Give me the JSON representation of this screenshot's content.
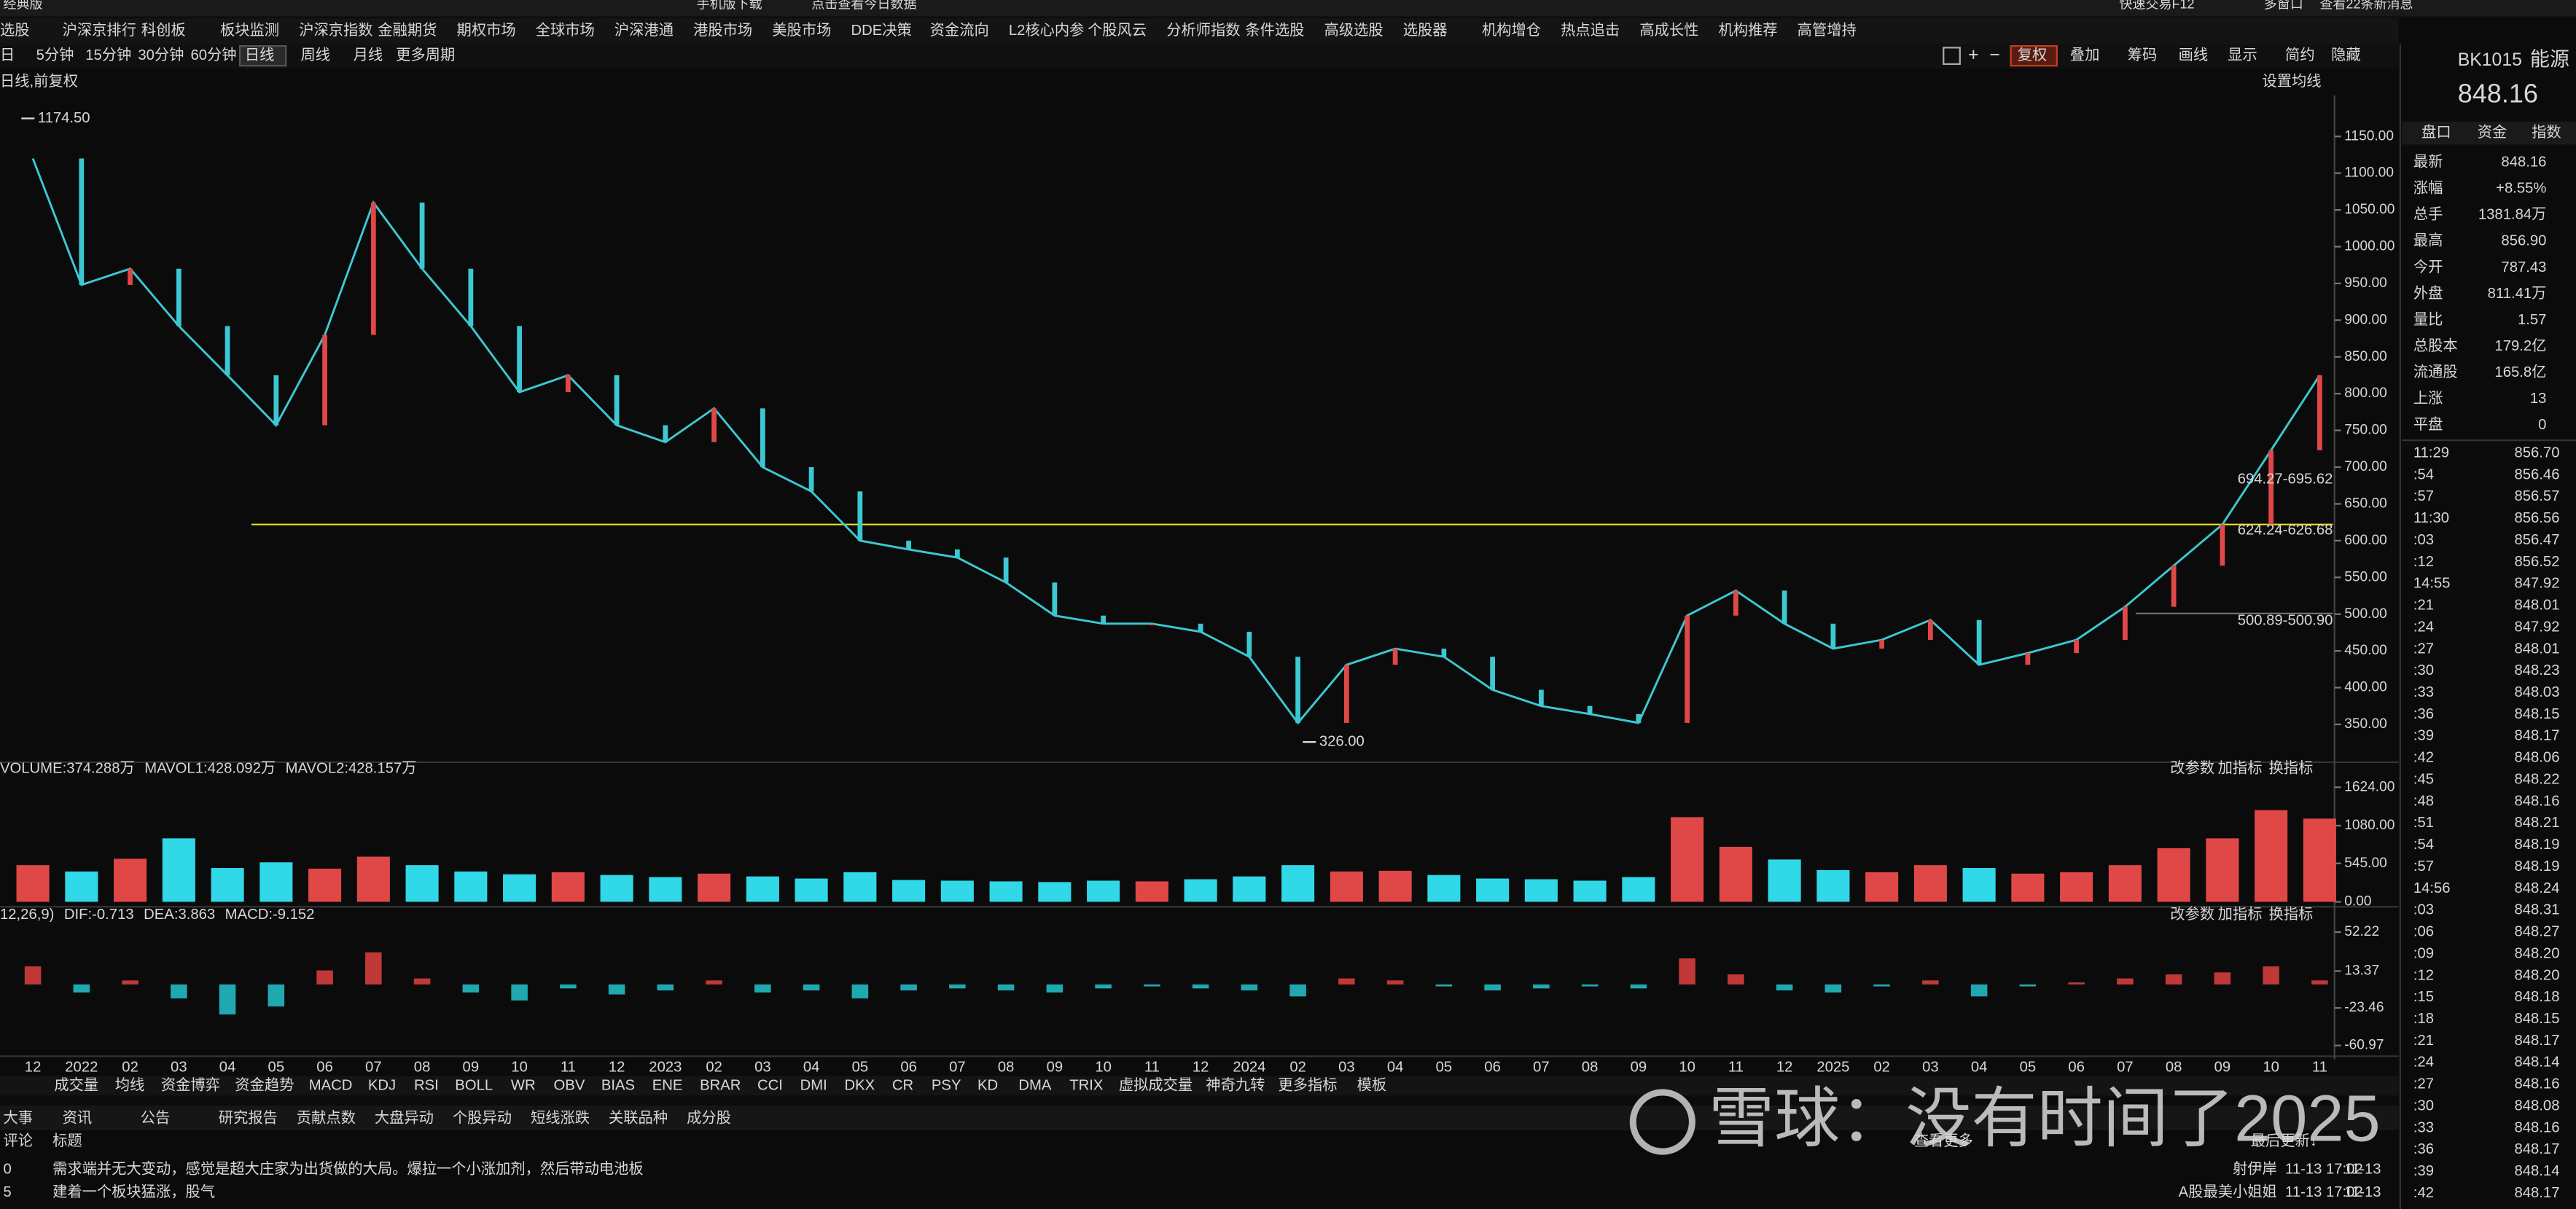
{
  "top_bar": {
    "edition": "经典版",
    "mobile": "手机版下载",
    "today": "点击查看今日数据",
    "trade": "快速交易F12",
    "multi": "多窗口",
    "messages": "查看22条新消息"
  },
  "menu": [
    "选股",
    "沪深京排行",
    "科创板",
    "板块监测",
    "沪深京指数",
    "金融期货",
    "期权市场",
    "全球市场",
    "沪深港通",
    "港股市场",
    "美股市场",
    "DDE决策",
    "资金流向",
    "L2核心内参",
    "个股风云",
    "分析师指数",
    "条件选股",
    "高级选股",
    "选股器",
    "机构增仓",
    "热点追击",
    "高成长性",
    "机构推荐",
    "高管增持"
  ],
  "periods": [
    {
      "label": "日",
      "active": false
    },
    {
      "label": "5分钟",
      "active": false
    },
    {
      "label": "15分钟",
      "active": false
    },
    {
      "label": "30分钟",
      "active": false
    },
    {
      "label": "60分钟",
      "active": false
    },
    {
      "label": "日线",
      "active": true
    },
    {
      "label": "周线",
      "active": false
    },
    {
      "label": "月线",
      "active": false
    },
    {
      "label": "更多周期",
      "active": false
    }
  ],
  "tools": [
    "复权",
    "叠加",
    "筹码",
    "画线",
    "显示",
    "简约",
    "隐藏"
  ],
  "chart_data": [
    {
      "type": "line",
      "title": "日线,前复权",
      "setting": "设置均线",
      "color": "#3cc8d2",
      "categories": [
        "12",
        "2022",
        "02",
        "03",
        "04",
        "05",
        "06",
        "07",
        "08",
        "09",
        "10",
        "11",
        "12",
        "2023",
        "02",
        "03",
        "04",
        "05",
        "06",
        "07",
        "08",
        "09",
        "10",
        "11",
        "12",
        "2024",
        "02",
        "03",
        "04",
        "05",
        "06",
        "07",
        "08",
        "09",
        "10",
        "11",
        "12",
        "2025",
        "02",
        "03",
        "04",
        "05",
        "06",
        "07",
        "08",
        "09",
        "10",
        "11"
      ],
      "values": [
        1120,
        948,
        970,
        892,
        825,
        757,
        880,
        1060,
        970,
        892,
        802,
        825,
        757,
        734,
        780,
        700,
        667,
        600,
        588,
        577,
        543,
        498,
        487,
        487,
        476,
        442,
        352,
        431,
        453,
        442,
        397,
        375,
        364,
        352,
        498,
        532,
        487,
        453,
        465,
        492,
        431,
        447,
        465,
        510,
        566,
        622,
        723,
        825
      ],
      "ylim": [
        303,
        1206
      ],
      "yticks": [
        {
          "value": 350,
          "label": "350.00"
        },
        {
          "value": 400,
          "label": "400.00"
        },
        {
          "value": 450,
          "label": "450.00"
        },
        {
          "value": 500,
          "label": "500.00"
        },
        {
          "value": 550,
          "label": "550.00"
        },
        {
          "value": 600,
          "label": "600.00"
        },
        {
          "value": 650,
          "label": "650.00"
        },
        {
          "value": 700,
          "label": "700.00"
        },
        {
          "value": 750,
          "label": "750.00"
        },
        {
          "value": 800,
          "label": "800.00"
        },
        {
          "value": 850,
          "label": "850.00"
        },
        {
          "value": 900,
          "label": "900.00"
        },
        {
          "value": 950,
          "label": "950.00"
        },
        {
          "value": 1000,
          "label": "1000.00"
        },
        {
          "value": 1050,
          "label": "1050.00"
        },
        {
          "value": 1100,
          "label": "1100.00"
        },
        {
          "value": 1150,
          "label": "1150.00"
        }
      ],
      "annotations": [
        {
          "value": 1174.5,
          "label": "1174.50"
        },
        {
          "value": 326,
          "label": "326.00"
        }
      ],
      "range_labels": [
        "694.27-695.62",
        "624.24-626.68",
        "500.89-500.90"
      ],
      "lines": [
        {
          "value": 622,
          "color": "#e8e020"
        },
        {
          "value": 501,
          "color": "#7a7a7a"
        }
      ]
    },
    {
      "type": "bar",
      "legend": [
        "VOLUME:374.288万",
        "MAVOL1:428.092万",
        "MAVOL2:428.157万"
      ],
      "legend_colors": [
        "#e0e0e0",
        "#e8e020",
        "#e040e0"
      ],
      "buttons": [
        "改参数",
        "加指标",
        "换指标"
      ],
      "values": [
        520,
        430,
        610,
        900,
        480,
        560,
        470,
        640,
        520,
        430,
        390,
        420,
        380,
        350,
        400,
        360,
        330,
        420,
        310,
        300,
        290,
        280,
        300,
        290,
        320,
        360,
        520,
        430,
        440,
        380,
        330,
        320,
        300,
        350,
        1200,
        780,
        600,
        450,
        420,
        520,
        480,
        400,
        420,
        520,
        760,
        900,
        1300,
        1180
      ],
      "ylim": [
        0,
        1700
      ],
      "yticks": [
        {
          "value": 0,
          "label": "0.00"
        },
        {
          "value": 545,
          "label": "545.00"
        },
        {
          "value": 1080,
          "label": "1080.00"
        },
        {
          "value": 1624,
          "label": "1624.00"
        }
      ]
    },
    {
      "type": "bar",
      "legend": [
        "12,26,9)",
        "DIF:-0.713",
        "DEA:3.863",
        "MACD:-9.152"
      ],
      "legend_colors": [
        "#e0e0e0",
        "#e0e0e0",
        "#e8e020",
        "#e040e0"
      ],
      "buttons": [
        "改参数",
        "加指标",
        "换指标"
      ],
      "values": [
        18,
        -8,
        4,
        -14,
        -30,
        -22,
        14,
        32,
        6,
        -8,
        -16,
        -4,
        -10,
        -6,
        4,
        -8,
        -6,
        -14,
        -6,
        -4,
        -6,
        -8,
        -4,
        -2,
        -4,
        -6,
        -12,
        6,
        4,
        -2,
        -6,
        -4,
        -2,
        -4,
        26,
        10,
        -6,
        -8,
        -2,
        4,
        -12,
        -2,
        2,
        6,
        10,
        12,
        18,
        4
      ],
      "ylim": [
        -75,
        71
      ],
      "yticks": [
        -60.97,
        -23.46,
        13.37,
        52.22
      ]
    }
  ],
  "indicator_tabs": [
    "成交量",
    "均线",
    "资金博弈",
    "资金趋势",
    "MACD",
    "KDJ",
    "RSI",
    "BOLL",
    "WR",
    "OBV",
    "BIAS",
    "ENE",
    "BRAR",
    "CCI",
    "DMI",
    "DKX",
    "CR",
    "PSY",
    "KD",
    "DMA",
    "TRIX",
    "虚拟成交量",
    "神奇九转",
    "更多指标",
    "模板"
  ],
  "news": {
    "tabs": [
      "大事",
      "资讯",
      "公告",
      "研究报告",
      "贡献点数",
      "大盘异动",
      "个股异动",
      "短线涨跌",
      "关联品种",
      "成分股"
    ],
    "header": [
      "评论",
      "标题"
    ],
    "more": "查看更多",
    "sort": "最后更新↓",
    "rows": [
      {
        "count": "0",
        "title": "需求端并无大变动，感觉是超大庄家为出货做的大局。爆拉一个小涨加剂，然后带动电池板",
        "author": "射伊岸",
        "time": "11-13 17:02",
        "date": "11-13"
      },
      {
        "count": "5",
        "title": "建着一个板块猛涨，股气",
        "author": "A股最美小姐姐",
        "time": "11-13 17:02",
        "date": "11-13"
      }
    ]
  },
  "quote": {
    "code": "BK1015",
    "name": "能源",
    "price": "848.16",
    "tabs": [
      "盘口",
      "资金",
      "指数"
    ],
    "rows": [
      {
        "label": "最新",
        "value": "848.16"
      },
      {
        "label": "涨幅",
        "value": "+8.55%"
      },
      {
        "label": "总手",
        "value": "1381.84万"
      },
      {
        "label": "最高",
        "value": "856.90"
      },
      {
        "label": "今开",
        "value": "787.43"
      },
      {
        "label": "外盘",
        "value": "811.41万"
      },
      {
        "label": "量比",
        "value": "1.57"
      },
      {
        "label": "总股本",
        "value": "179.2亿"
      },
      {
        "label": "流通股",
        "value": "165.8亿"
      },
      {
        "label": "上涨",
        "value": "13"
      },
      {
        "label": "平盘",
        "value": "0"
      }
    ],
    "ticks": [
      [
        "11:29",
        "856.70"
      ],
      [
        ":54",
        "856.46"
      ],
      [
        ":57",
        "856.57"
      ],
      [
        "11:30",
        "856.56"
      ],
      [
        ":03",
        "856.47"
      ],
      [
        ":12",
        "856.52"
      ],
      [
        "14:55",
        "847.92"
      ],
      [
        ":21",
        "848.01"
      ],
      [
        ":24",
        "847.92"
      ],
      [
        ":27",
        "848.01"
      ],
      [
        ":30",
        "848.23"
      ],
      [
        ":33",
        "848.03"
      ],
      [
        ":36",
        "848.15"
      ],
      [
        ":39",
        "848.17"
      ],
      [
        ":42",
        "848.06"
      ],
      [
        ":45",
        "848.22"
      ],
      [
        ":48",
        "848.16"
      ],
      [
        ":51",
        "848.21"
      ],
      [
        ":54",
        "848.19"
      ],
      [
        ":57",
        "848.19"
      ],
      [
        "14:56",
        "848.24"
      ],
      [
        ":03",
        "848.31"
      ],
      [
        ":06",
        "848.27"
      ],
      [
        ":09",
        "848.20"
      ],
      [
        ":12",
        "848.20"
      ],
      [
        ":15",
        "848.18"
      ],
      [
        ":18",
        "848.15"
      ],
      [
        ":21",
        "848.17"
      ],
      [
        ":24",
        "848.14"
      ],
      [
        ":27",
        "848.16"
      ],
      [
        ":30",
        "848.08"
      ],
      [
        ":33",
        "848.16"
      ],
      [
        ":36",
        "848.17"
      ],
      [
        ":39",
        "848.14"
      ],
      [
        ":42",
        "848.17"
      ]
    ]
  },
  "watermark": "雪球：没有时间了2025"
}
